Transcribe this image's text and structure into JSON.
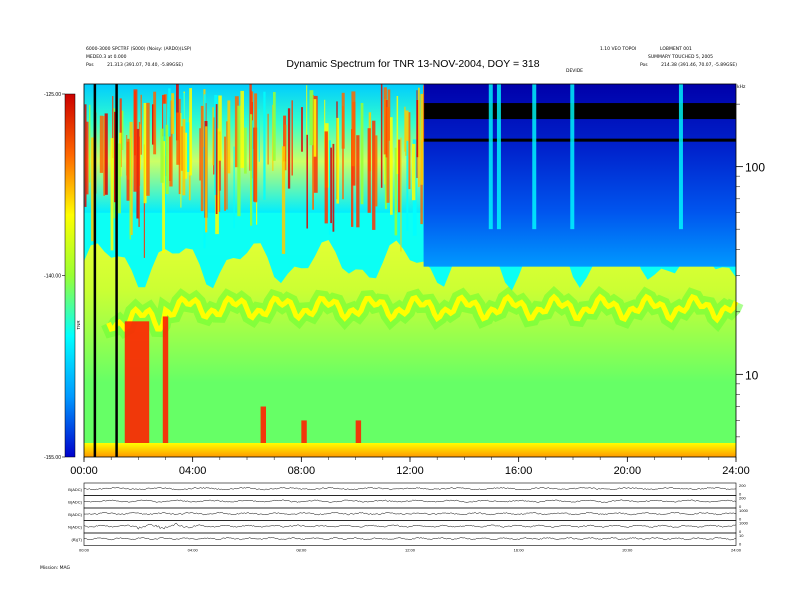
{
  "header": {
    "title": "Dynamic Spectrum for TNR 13-NOV-2004, DOY = 318",
    "left_lines": [
      "6000-3000 SPCTRF (S000) (Noisy: (ARD0)(LSP)",
      "MEDE0.3 at 0.000"
    ],
    "left_pos_label": "Pos",
    "left_pos_value": "21.313 (391.07, 70.40, -5.89GSE)",
    "right_lines": [
      "1.10 VEO TOPOI",
      "SUMMARY TOUCHED 5, 2005"
    ],
    "right_pos_label": "Pos",
    "right_pos_value": "214.38 (391.46, 70.07, -5.89GSE)",
    "top_right_tag": "LOBMENT 001",
    "mid_tag": "DEVIDE",
    "khz_label": "kHz"
  },
  "colorbar": {
    "label": "TNR",
    "ticks": [
      "-125.00",
      "-140.00",
      "-155.00"
    ],
    "colors": [
      "#cc0000",
      "#ff6600",
      "#ffff00",
      "#99ff33",
      "#00ffff",
      "#0099ff",
      "#0000cc"
    ]
  },
  "chart_data": {
    "type": "heatmap",
    "title": "Dynamic Spectrum for TNR 13-NOV-2004, DOY = 318",
    "x_ticks": [
      "00:00",
      "04:00",
      "08:00",
      "12:00",
      "16:00",
      "20:00",
      "24:00"
    ],
    "x_range_hours": [
      0,
      24
    ],
    "y_scale": "log",
    "y_range_khz": [
      4,
      250
    ],
    "y_ticks": [
      {
        "value": 100,
        "label": "100"
      },
      {
        "value": 10,
        "label": "10"
      }
    ],
    "color_range_db": [
      -155,
      -125
    ],
    "features": {
      "upper_band_khz": [
        60,
        220
      ],
      "upper_band_end_hour": 12.5,
      "emission_line_khz": 21,
      "cyan_layer_khz": [
        35,
        60
      ]
    },
    "vertical_markers_hours": [
      0.4,
      1.2
    ]
  },
  "panels": {
    "labels": [
      "B(ADC)",
      "B(ADC)",
      "B(ADC)",
      "N(ADC)",
      "(B)(T)"
    ],
    "right_ticks": [
      [
        "200",
        "0"
      ],
      [
        "200",
        "0"
      ],
      [
        "1000",
        "0"
      ],
      [
        "1000",
        "0"
      ],
      [
        "10",
        "0"
      ]
    ],
    "x_ticks": [
      "00:00",
      "04:00",
      "08:00",
      "12:00",
      "16:00",
      "20:00",
      "24:00"
    ]
  },
  "footer": {
    "label": "Mission: MAG"
  }
}
